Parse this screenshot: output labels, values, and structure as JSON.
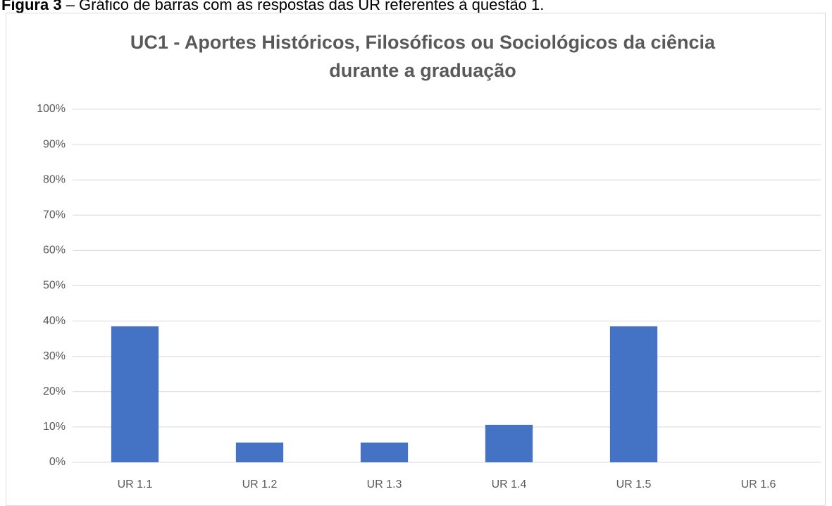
{
  "caption": {
    "label": "Figura 3",
    "text": "– Gráfico de barras com as respostas das UR referentes à questão 1."
  },
  "chart_data": {
    "type": "bar",
    "title": "UC1 - Aportes Históricos, Filosóficos ou Sociológicos da ciência durante a graduação",
    "categories": [
      "UR 1.1",
      "UR 1.2",
      "UR 1.3",
      "UR 1.4",
      "UR 1.5",
      "UR 1.6"
    ],
    "values": [
      38.5,
      5.6,
      5.6,
      10.6,
      38.5,
      0
    ],
    "color": "#4472c4",
    "ylim": [
      0,
      100
    ],
    "yticks": [
      {
        "value": 0,
        "label": "0%"
      },
      {
        "value": 10,
        "label": "10%"
      },
      {
        "value": 20,
        "label": "20%"
      },
      {
        "value": 30,
        "label": "30%"
      },
      {
        "value": 40,
        "label": "40%"
      },
      {
        "value": 50,
        "label": "50%"
      },
      {
        "value": 60,
        "label": "60%"
      },
      {
        "value": 70,
        "label": "70%"
      },
      {
        "value": 80,
        "label": "80%"
      },
      {
        "value": 90,
        "label": "90%"
      },
      {
        "value": 100,
        "label": "100%"
      }
    ],
    "grid": true
  }
}
